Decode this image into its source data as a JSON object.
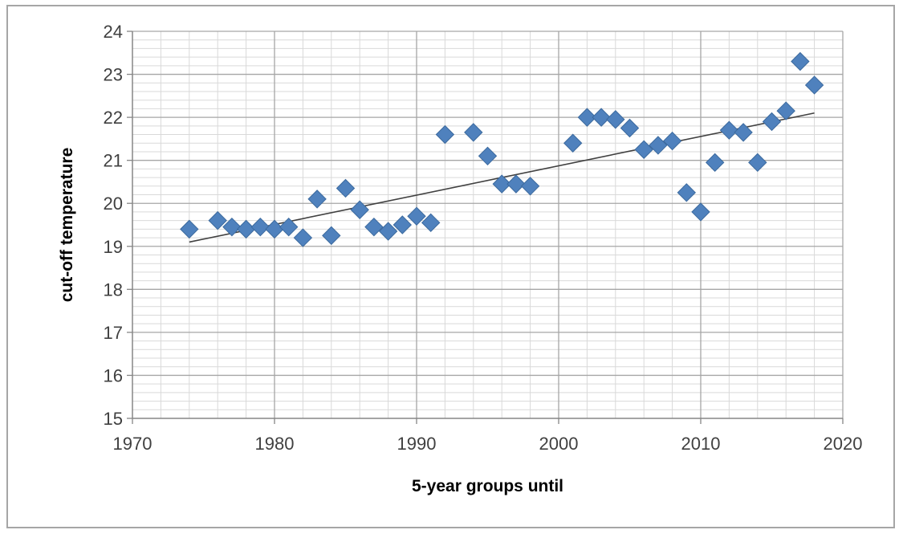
{
  "chart_data": {
    "type": "scatter",
    "title": "",
    "xlabel": "5-year groups until",
    "ylabel": "cut-off temperature",
    "xlim": [
      1970,
      2020
    ],
    "ylim": [
      15,
      24
    ],
    "x_ticks": [
      1970,
      1980,
      1990,
      2000,
      2010,
      2020
    ],
    "y_ticks": [
      15,
      16,
      17,
      18,
      19,
      20,
      21,
      22,
      23,
      24
    ],
    "x_minor_step": 2,
    "y_minor_step": 0.2,
    "grid": true,
    "legend": "none",
    "colors": {
      "marker": "#4f81bd",
      "marker_stroke": "#3c6a9e",
      "trendline": "#404040",
      "major_grid": "#a6a6a6",
      "minor_grid": "#d9d9d9",
      "axis": "#868686"
    },
    "series": [
      {
        "marker": "diamond",
        "x": [
          1974,
          1976,
          1977,
          1978,
          1979,
          1980,
          1981,
          1982,
          1983,
          1984,
          1985,
          1986,
          1987,
          1988,
          1989,
          1990,
          1991,
          1992,
          1994,
          1995,
          1996,
          1997,
          1998,
          2001,
          2002,
          2003,
          2004,
          2005,
          2006,
          2007,
          2008,
          2009,
          2010,
          2011,
          2012,
          2013,
          2014,
          2015,
          2016,
          2017,
          2018
        ],
        "y": [
          19.4,
          19.6,
          19.45,
          19.4,
          19.45,
          19.4,
          19.45,
          19.2,
          20.1,
          19.25,
          20.35,
          19.85,
          19.45,
          19.35,
          19.5,
          19.7,
          19.55,
          21.6,
          21.65,
          21.1,
          20.45,
          20.45,
          20.4,
          21.4,
          22.0,
          22.0,
          21.95,
          21.75,
          21.25,
          21.35,
          21.45,
          20.25,
          19.8,
          20.95,
          21.7,
          21.65,
          20.95,
          21.9,
          22.15,
          23.3,
          22.75
        ]
      }
    ],
    "trendline": {
      "type": "linear",
      "x": [
        1974,
        2018
      ],
      "y": [
        19.1,
        22.1
      ]
    }
  }
}
